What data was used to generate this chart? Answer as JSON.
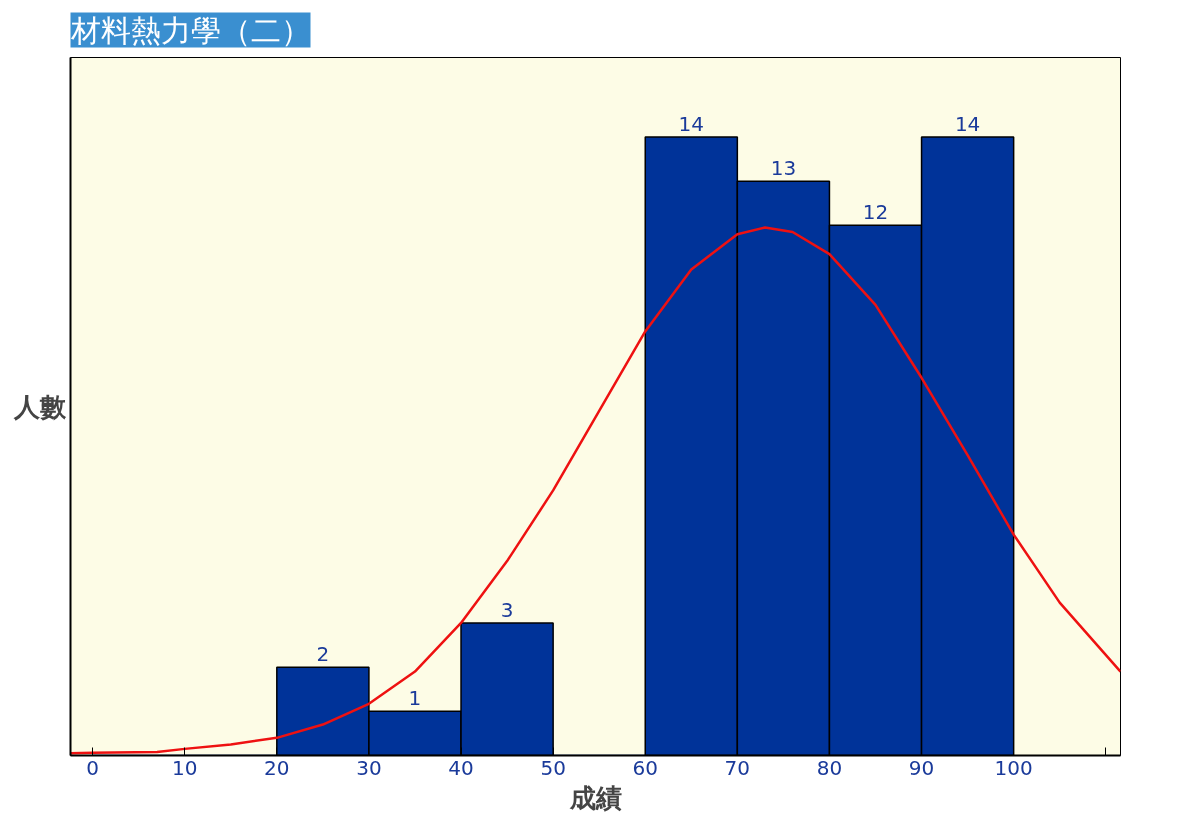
{
  "chart_data": {
    "type": "histogram",
    "title": "材料熱力學（二）",
    "xlabel": "成績",
    "ylabel": "人數",
    "bins": [
      0,
      10,
      20,
      30,
      40,
      50,
      60,
      70,
      80,
      90,
      100
    ],
    "values": [
      0,
      0,
      2,
      1,
      3,
      0,
      14,
      13,
      12,
      14
    ],
    "value_labels": [
      null,
      null,
      "2",
      "1",
      "3",
      null,
      "14",
      "13",
      "12",
      "14"
    ],
    "color": "#003399",
    "series": [
      {
        "type": "line",
        "color": "#ee1111",
        "x": [
          -2.4,
          0,
          7,
          10,
          15,
          20,
          25,
          30,
          35,
          40,
          45,
          50,
          55,
          60,
          65,
          70,
          73,
          76,
          80,
          85,
          90,
          95,
          100,
          105,
          111.6
        ],
        "values": [
          0.05,
          0.06,
          0.08,
          0.15,
          0.25,
          0.4,
          0.7,
          1.17,
          1.9,
          3.0,
          4.4,
          6.0,
          7.8,
          9.6,
          11.0,
          11.8,
          11.95,
          11.85,
          11.35,
          10.2,
          8.55,
          6.8,
          5.0,
          3.46,
          1.9
        ]
      }
    ],
    "xlim": [
      -2.4,
      111.6
    ],
    "xticks": [
      0,
      10,
      20,
      30,
      40,
      50,
      60,
      70,
      80,
      90,
      100,
      {
        "value": 110,
        "label": null
      }
    ],
    "ylim": [
      0,
      15.8
    ],
    "tick_labels": "x",
    "grid": false
  }
}
